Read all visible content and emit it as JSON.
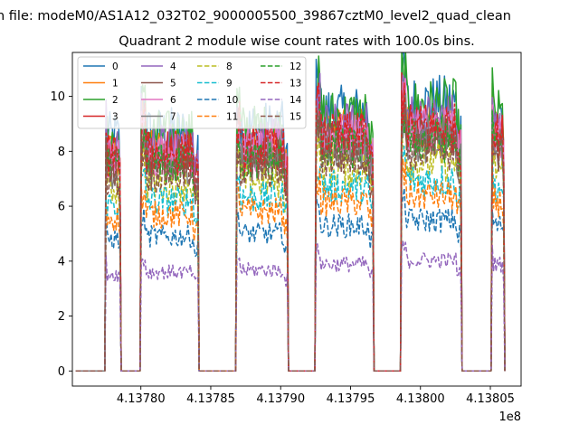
{
  "chart_data": {
    "type": "line",
    "suptitle": "n file: modeM0/AS1A12_032T02_9000005500_39867cztM0_level2_quad_clean",
    "title": "Quadrant 2 module wise count rates with 100.0s bins.",
    "xlabel": "",
    "ylabel": "",
    "x_offset_label": "1e8",
    "xlim": [
      4.137751,
      4.138072
    ],
    "ylim": [
      -0.55,
      11.6
    ],
    "x_ticks": [
      4.1378,
      4.13785,
      4.1379,
      4.13795,
      4.138,
      4.13805
    ],
    "x_tick_labels": [
      "4.13780",
      "4.13785",
      "4.13790",
      "4.13795",
      "4.13800",
      "4.13805"
    ],
    "y_ticks": [
      0,
      2,
      4,
      6,
      8,
      10
    ],
    "y_tick_labels": [
      "0",
      "2",
      "4",
      "6",
      "8",
      "10"
    ],
    "legend_location": "top-left",
    "legend_columns": 4,
    "x_units": "1e8 seconds",
    "bin_width_s": 100,
    "segments": [
      {
        "start": 4.137775,
        "end": 4.137785
      },
      {
        "start": 4.1378,
        "end": 4.137841
      },
      {
        "start": 4.137868,
        "end": 4.137905
      },
      {
        "start": 4.137925,
        "end": 4.137966
      },
      {
        "start": 4.137986,
        "end": 4.138029
      },
      {
        "start": 4.138051,
        "end": 4.13806
      }
    ],
    "segment_multipliers": [
      0.98,
      1.0,
      1.02,
      1.08,
      1.12,
      1.08
    ],
    "series": [
      {
        "name": "0",
        "color": "#1f77b4",
        "style": "solid",
        "level": 8.7
      },
      {
        "name": "1",
        "color": "#ff7f0e",
        "style": "solid",
        "level": 8.0
      },
      {
        "name": "2",
        "color": "#2ca02c",
        "style": "solid",
        "level": 8.6
      },
      {
        "name": "3",
        "color": "#d62728",
        "style": "solid",
        "level": 8.0
      },
      {
        "name": "4",
        "color": "#9467bd",
        "style": "solid",
        "level": 8.2
      },
      {
        "name": "5",
        "color": "#8c564b",
        "style": "solid",
        "level": 7.7
      },
      {
        "name": "6",
        "color": "#e377c2",
        "style": "solid",
        "level": 7.9
      },
      {
        "name": "7",
        "color": "#7f7f7f",
        "style": "solid",
        "level": 7.5
      },
      {
        "name": "8",
        "color": "#bcbd22",
        "style": "dashed",
        "level": 6.8
      },
      {
        "name": "9",
        "color": "#17becf",
        "style": "dashed",
        "level": 6.2
      },
      {
        "name": "10",
        "color": "#1f77b4",
        "style": "dashed",
        "level": 4.9
      },
      {
        "name": "11",
        "color": "#ff7f0e",
        "style": "dashed",
        "level": 5.7
      },
      {
        "name": "12",
        "color": "#2ca02c",
        "style": "dashed",
        "level": 7.5
      },
      {
        "name": "13",
        "color": "#d62728",
        "style": "dashed",
        "level": 7.9
      },
      {
        "name": "14",
        "color": "#9467bd",
        "style": "dashed",
        "level": 3.6
      },
      {
        "name": "15",
        "color": "#8c564b",
        "style": "dashed",
        "level": 7.2
      }
    ]
  }
}
